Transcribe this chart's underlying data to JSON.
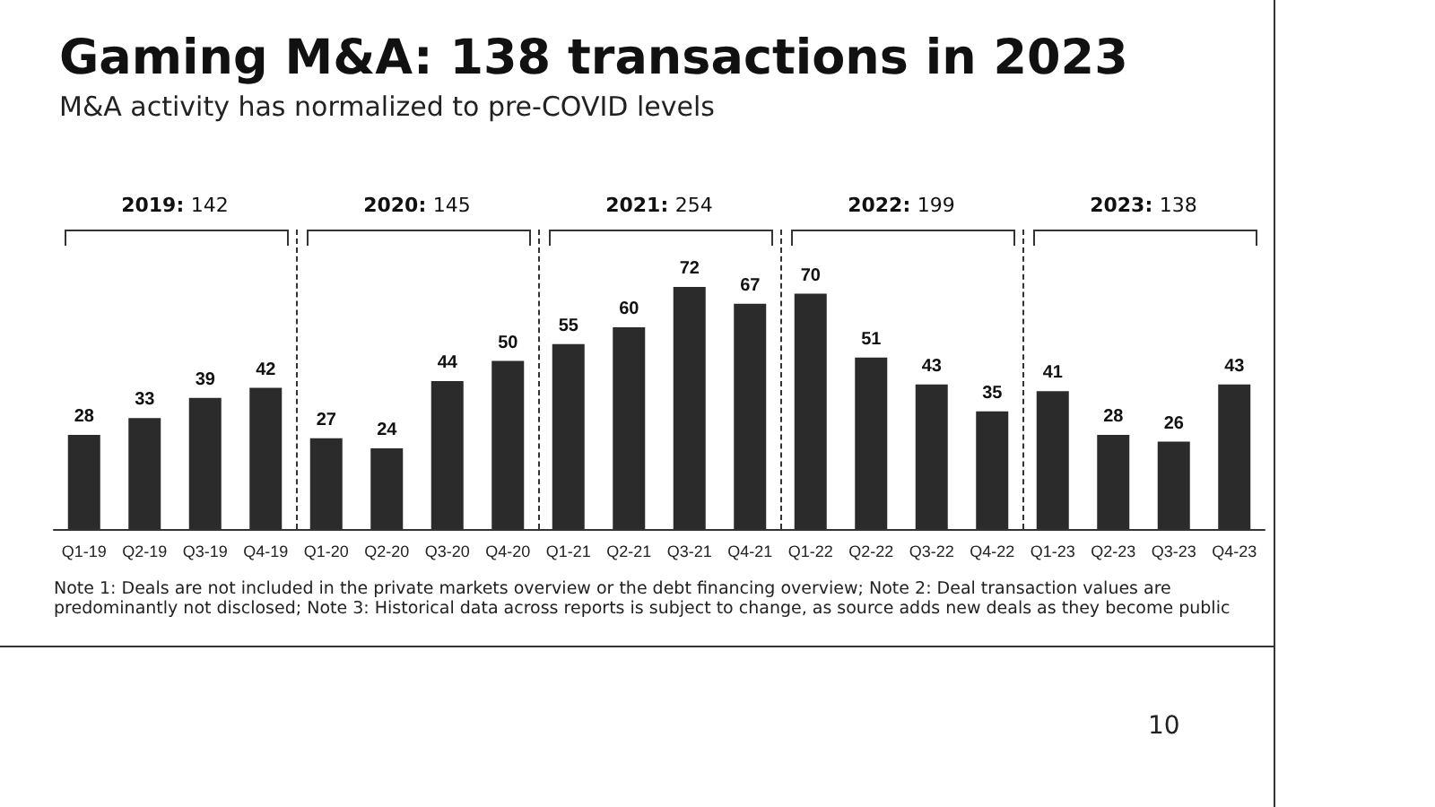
{
  "chart_data": {
    "type": "bar",
    "title": "Gaming M&A: 138 transactions in 2023",
    "subtitle": "M&A activity has normalized to pre-COVID levels",
    "categories": [
      "Q1-19",
      "Q2-19",
      "Q3-19",
      "Q4-19",
      "Q1-20",
      "Q2-20",
      "Q3-20",
      "Q4-20",
      "Q1-21",
      "Q2-21",
      "Q3-21",
      "Q4-21",
      "Q1-22",
      "Q2-22",
      "Q3-22",
      "Q4-22",
      "Q1-23",
      "Q2-23",
      "Q3-23",
      "Q4-23"
    ],
    "values": [
      28,
      33,
      39,
      42,
      27,
      24,
      44,
      50,
      55,
      60,
      72,
      67,
      70,
      51,
      43,
      35,
      41,
      28,
      26,
      43
    ],
    "color": "#2b2b2b",
    "data_labels": true,
    "annotations": [
      "2019: 142",
      "2020: 145",
      "2021: 254",
      "2022: 199",
      "2023: 138",
      "Note 1: Deals are not included in the private markets overview or the debt financing overview; Note 2: Deal transaction values are predominantly not disclosed; Note 3: Historical data across reports is subject to change, as source adds new deals as they become public",
      "10"
    ]
  }
}
